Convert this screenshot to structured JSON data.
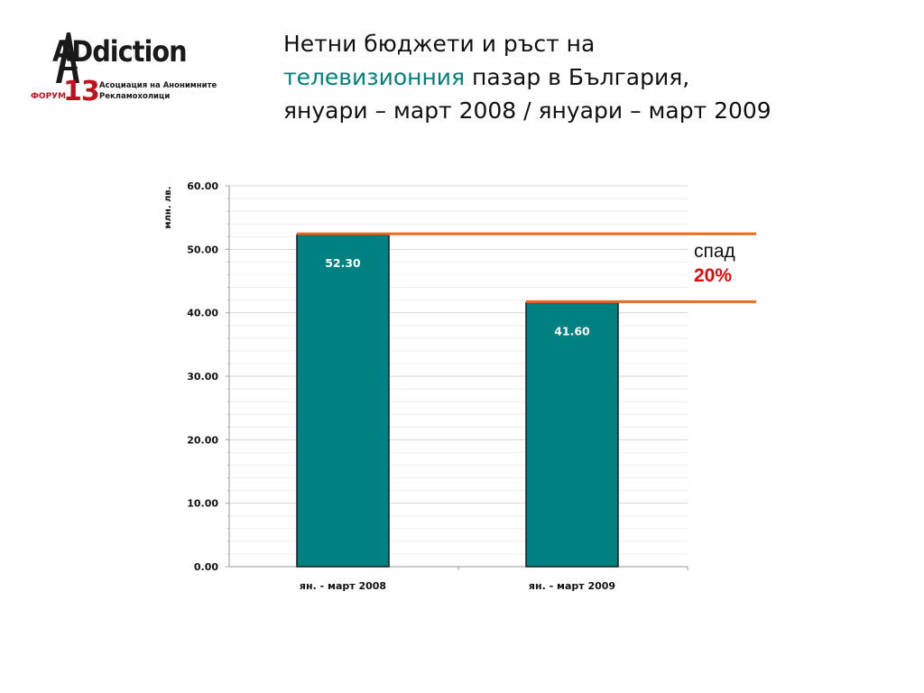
{
  "logo": {
    "word": "ADdiction",
    "forum": "ФОРУМ",
    "number": "13",
    "subtitle_line1": "Асоциация на Анонимните",
    "subtitle_line2": "Рекламохолици"
  },
  "title": {
    "line1": "Нетни бюджети и ръст на",
    "line2_accent": "телевизионния",
    "line2_rest": " пазар в България,",
    "line3": "януари – март 2008 / януари – март 2009"
  },
  "annotation": {
    "label": "спад",
    "value": "20%"
  },
  "colors": {
    "bar": "#008080",
    "bar_border": "#1a1a1a",
    "reference_line": "#e86a1f",
    "accent": "#00807c",
    "drop": "#e00a0a"
  },
  "chart_data": {
    "type": "bar",
    "categories": [
      "ян. - март 2008",
      "ян. - март 2009"
    ],
    "values": [
      52.3,
      41.6
    ],
    "data_labels": [
      "52.30",
      "41.60"
    ],
    "ylabel": "млн. лв.",
    "xlabel": "",
    "ylim": [
      0,
      60
    ],
    "yticks": [
      "0.00",
      "10.00",
      "20.00",
      "30.00",
      "40.00",
      "50.00",
      "60.00"
    ],
    "grid": true,
    "reference_lines": [
      52.3,
      41.6
    ]
  }
}
